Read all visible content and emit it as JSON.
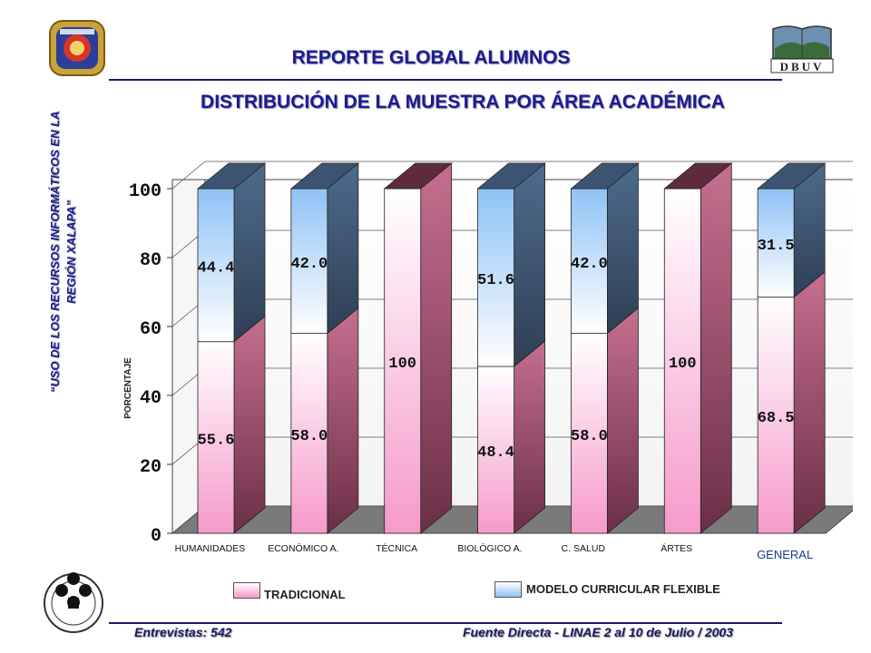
{
  "header": {
    "title": "REPORTE GLOBAL ALUMNOS",
    "subtitle": "DISTRIBUCIÓN DE LA MUESTRA POR ÁREA ACADÉMICA"
  },
  "sidebar": {
    "line1": "“USO DE LOS RECURSOS INFORMÁTICOS EN LA",
    "line2": "REGIÓN XALAPA”"
  },
  "logos": {
    "left_top": "university-seal-icon",
    "right_top": "dbuv-logo-icon",
    "right_top_text": "DBUV",
    "left_bottom": "research-seal-icon"
  },
  "footer": {
    "left": "Entrevistas: 542",
    "right": "Fuente Directa -  LINAE 2 al 10  de Julio / 2003"
  },
  "chart_data": {
    "type": "bar",
    "stacked": true,
    "three_d": true,
    "ylabel": "PORCENTAJE",
    "ylim": [
      0,
      100
    ],
    "yticks": [
      "0",
      "20",
      "40",
      "60",
      "80",
      "100"
    ],
    "categories": [
      "HUMANIDADES",
      "ECONÓMICO  A.",
      "TÉCNICA",
      "BIOLÓGICO  A.",
      "C. SALUD",
      "ÁRTES",
      "GENERAL"
    ],
    "series": [
      {
        "name": "TRADICIONAL",
        "values": [
          55.6,
          58.0,
          100,
          48.4,
          58.0,
          100,
          68.5
        ],
        "labels": [
          "55.6",
          "58.0",
          "100",
          "48.4",
          "58.0",
          "100",
          "68.5"
        ],
        "color": "#f59acb"
      },
      {
        "name": "MODELO CURRICULAR FLEXIBLE",
        "values": [
          44.4,
          42.0,
          0,
          51.6,
          42.0,
          0,
          31.5
        ],
        "labels": [
          "44.4",
          "42.0",
          "",
          "51.6",
          "42.0",
          "",
          "31.5"
        ],
        "color": "#8fc2f5"
      }
    ],
    "legend": {
      "position": "bottom"
    }
  }
}
